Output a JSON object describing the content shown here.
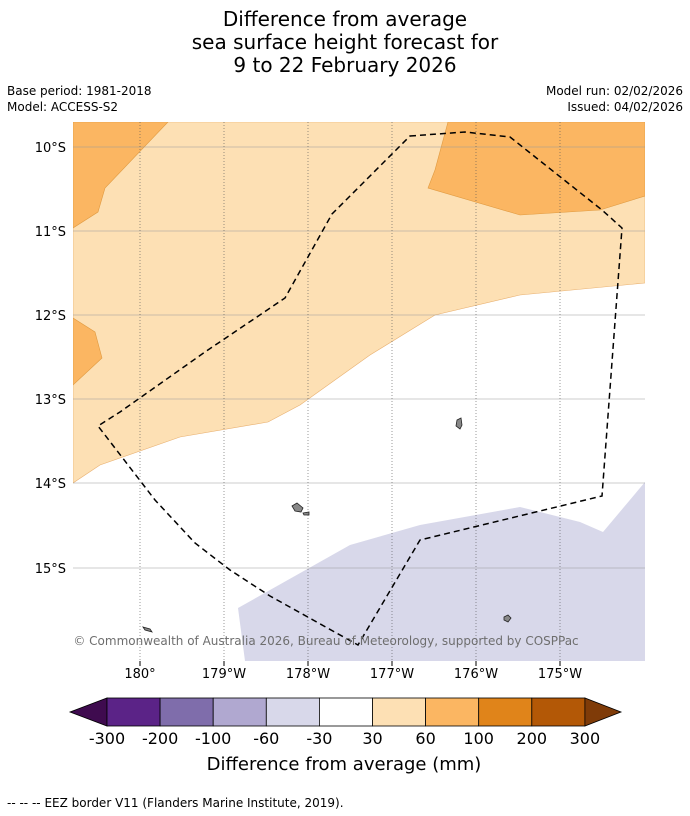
{
  "title": {
    "line1": "Difference from average",
    "line2": "sea surface height forecast for",
    "line3": "9 to 22 February 2026"
  },
  "meta": {
    "base_period": "Base period: 1981-2018",
    "model": "Model: ACCESS-S2",
    "model_run": "Model run: 02/02/2026",
    "issued": "Issued: 04/02/2026"
  },
  "map": {
    "lat_labels": [
      "10°S",
      "11°S",
      "12°S",
      "13°S",
      "14°S",
      "15°S"
    ],
    "lon_labels": [
      "180°",
      "179°W",
      "178°W",
      "177°W",
      "176°W",
      "175°W"
    ],
    "copyright": "© Commonwealth of Australia 2026, Bureau of Meteorology, supported by COSPPac"
  },
  "legend": {
    "title": "Difference from average (mm)",
    "ticks": [
      "-300",
      "-200",
      "-100",
      "-60",
      "-30",
      "30",
      "60",
      "100",
      "200",
      "300"
    ],
    "colors": [
      "#3f0b4f",
      "#5b2387",
      "#7f6dab",
      "#b0a8d0",
      "#d8d8ea",
      "#ffffff",
      "#fde0b4",
      "#fbb662",
      "#e0841a",
      "#b35806",
      "#7f3b08"
    ],
    "ocean_color": "#ffffff",
    "land_color": "#888888"
  },
  "footer": {
    "eez_marker": "-- -- --",
    "eez_label": "EEZ border V11 (Flanders Marine Institute, 2019)."
  }
}
